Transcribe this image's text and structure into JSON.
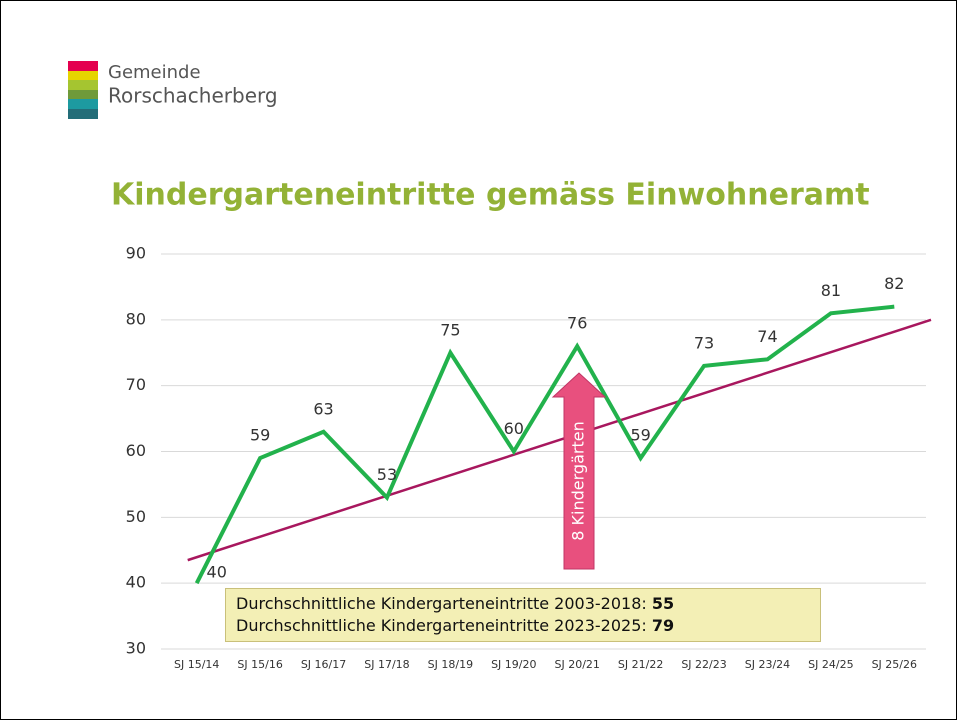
{
  "logo": {
    "line1": "Gemeinde",
    "line2": "Rorschacherberg"
  },
  "chart_data": {
    "type": "line",
    "title": "Kindergarteneintritte gemäss Einwohneramt",
    "categories": [
      "SJ 15/14",
      "SJ 15/16",
      "SJ 16/17",
      "SJ 17/18",
      "SJ 18/19",
      "SJ 19/20",
      "SJ 20/21",
      "SJ 21/22",
      "SJ 22/23",
      "SJ 23/24",
      "SJ 24/25",
      "SJ 25/26"
    ],
    "series": [
      {
        "name": "Kindergarteneintritte",
        "color": "#22b24c",
        "values": [
          40,
          59,
          63,
          53,
          75,
          60,
          76,
          59,
          73,
          74,
          81,
          82
        ]
      }
    ],
    "trendline": {
      "color": "#a8175e",
      "start": 43.5,
      "end": 80
    },
    "ylim": [
      30,
      90
    ],
    "yticks": [
      30,
      40,
      50,
      60,
      70,
      80,
      90
    ],
    "grid": true,
    "annotation": "8 Kindergärten",
    "summary": [
      {
        "text": "Durchschnittliche Kindergarteneintritte 2003-2018:",
        "value": 55
      },
      {
        "text": "Durchschnittliche Kindergarteneintritte 2023-2025:",
        "value": 79
      }
    ]
  }
}
